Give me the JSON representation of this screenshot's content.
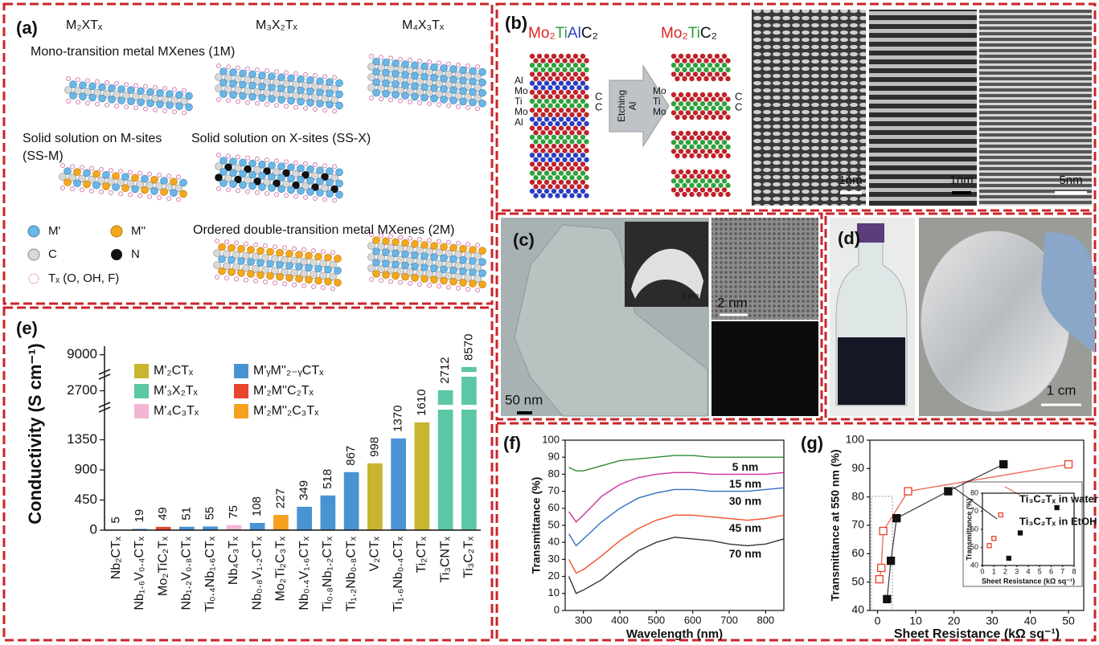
{
  "panels": {
    "a": {
      "label": "(a)",
      "headers": [
        "M₂XTₓ",
        "M₃X₂Tₓ",
        "M₄X₃Tₓ"
      ],
      "mono": "Mono-transition metal MXenes (1M)",
      "ssm": [
        "Solid solution on M-sites",
        "(SS-M)"
      ],
      "ssx": "Solid solution on X-sites (SS-X)",
      "ordered": "Ordered double-transition metal MXenes (2M)",
      "legend": [
        "M'",
        "M''",
        "C",
        "N",
        "Tₓ (O, OH, F)"
      ]
    },
    "b": {
      "label": "(b)",
      "parent": [
        "Mo₂",
        "Ti",
        "Al",
        "C₂"
      ],
      "product": [
        "Mo₂",
        "Ti",
        "C₂"
      ],
      "etching": [
        "Etching",
        "Al"
      ],
      "layers_left": [
        "Al",
        "Mo",
        "Ti",
        "Mo",
        "Al"
      ],
      "layers_right": [
        "Mo",
        "Ti",
        "Mo"
      ],
      "carbon": "C",
      "scales": [
        "1nm",
        "1nm",
        "5nm"
      ]
    },
    "c": {
      "label": "(c)",
      "scales": [
        "50 nm",
        "3 μm",
        "2 nm"
      ]
    },
    "d": {
      "label": "(d)",
      "scale": "1 cm"
    }
  },
  "chart_data": [
    {
      "type": "bar",
      "label": "(e)",
      "y_label": "Conductivity (S cm⁻¹)",
      "categories": [
        "Nb₂CTₓ",
        "Nb₁.₆V₀.₄CTₓ",
        "Mo₂TiC₂Tₓ",
        "Nb₁.₂V₀.₈CTₓ",
        "Ti₀.₄Nb₁.₆CTₓ",
        "Nb₄C₃Tₓ",
        "Nb₀.₈V₁.₂CTₓ",
        "Mo₂Ti₂C₃Tₓ",
        "Nb₀.₄V₁.₆CTₓ",
        "Ti₀.₈Nb₁.₂CTₓ",
        "Ti₁.₂Nb₀.₈CTₓ",
        "V₂CTₓ",
        "Ti₁.₆Nb₀.₄CTₓ",
        "Ti₂CTₓ",
        "Ti₃CNTₓ",
        "Ti₃C₂Tₓ"
      ],
      "series": [
        {
          "name": "M'₂CTₓ",
          "color": "#c9b52e",
          "values": [
            5,
            null,
            null,
            null,
            null,
            null,
            null,
            null,
            null,
            null,
            null,
            998,
            null,
            1610,
            null,
            null
          ]
        },
        {
          "name": "M'₃X₂Tₓ",
          "color": "#5cc7a6",
          "values": [
            null,
            null,
            null,
            null,
            null,
            null,
            null,
            null,
            null,
            null,
            null,
            null,
            null,
            null,
            2712,
            8570
          ]
        },
        {
          "name": "M'₄C₃Tₓ",
          "color": "#f2b6d4",
          "values": [
            null,
            null,
            null,
            null,
            null,
            75,
            null,
            null,
            null,
            null,
            null,
            null,
            null,
            null,
            null,
            null
          ]
        },
        {
          "name": "M'ᵧM''₂₋ᵧCTₓ",
          "color": "#4a93d2",
          "values": [
            null,
            19,
            null,
            51,
            55,
            null,
            108,
            null,
            349,
            518,
            867,
            null,
            1370,
            null,
            null,
            null
          ]
        },
        {
          "name": "M'₂M''C₂Tₓ",
          "color": "#e8452f",
          "values": [
            null,
            null,
            49,
            null,
            null,
            null,
            null,
            null,
            null,
            null,
            null,
            null,
            null,
            null,
            null,
            null
          ]
        },
        {
          "name": "M'₂M''₂C₃Tₓ",
          "color": "#f5a11f",
          "values": [
            null,
            null,
            null,
            null,
            null,
            null,
            null,
            227,
            null,
            null,
            null,
            null,
            null,
            null,
            null,
            null
          ]
        }
      ],
      "ylim": [
        0,
        9300
      ],
      "axis_breaks": [
        [
          1800,
          2400
        ],
        [
          3000,
          8400
        ]
      ],
      "yticks": [
        0,
        450,
        900,
        1350,
        2700,
        9000
      ]
    },
    {
      "type": "line",
      "label": "(f)",
      "x_label": "Wavelength (nm)",
      "y_label": "Transmittance (%)",
      "x": [
        260,
        280,
        300,
        350,
        400,
        450,
        500,
        550,
        600,
        650,
        700,
        750,
        800,
        850
      ],
      "xlim": [
        250,
        850
      ],
      "xticks": [
        300,
        400,
        500,
        600,
        700,
        800
      ],
      "ylim": [
        0,
        100
      ],
      "yticks": [
        0,
        10,
        20,
        30,
        40,
        50,
        60,
        70,
        80,
        90,
        100
      ],
      "series": [
        {
          "name": "5 nm",
          "color": "#2e8b2e",
          "values": [
            84,
            82,
            82,
            85,
            88,
            89,
            90,
            91,
            91,
            90,
            90,
            90,
            90,
            90
          ]
        },
        {
          "name": "15 nm",
          "color": "#d1309a",
          "values": [
            58,
            52,
            56,
            67,
            74,
            78,
            80,
            81,
            81,
            80,
            80,
            80,
            80,
            81
          ]
        },
        {
          "name": "30 nm",
          "color": "#2f6fc4",
          "values": [
            45,
            38,
            42,
            52,
            60,
            66,
            69,
            71,
            71,
            70,
            70,
            70,
            71,
            72
          ]
        },
        {
          "name": "45 nm",
          "color": "#f2502a",
          "values": [
            30,
            22,
            24,
            32,
            41,
            48,
            53,
            56,
            56,
            55,
            54,
            53,
            54,
            56
          ]
        },
        {
          "name": "70 nm",
          "color": "#333333",
          "values": [
            20,
            10,
            12,
            18,
            27,
            35,
            40,
            43,
            42,
            41,
            39,
            38,
            39,
            42
          ]
        }
      ]
    },
    {
      "type": "scatter",
      "label": "(g)",
      "x_label": "Sheet Resistance (kΩ sq⁻¹)",
      "y_label": "Transmittance at 550 nm (%)",
      "xlim": [
        -2,
        54
      ],
      "xticks": [
        0,
        10,
        20,
        30,
        40,
        50
      ],
      "ylim": [
        40,
        100
      ],
      "yticks": [
        40,
        50,
        60,
        70,
        80,
        90,
        100
      ],
      "lines": true,
      "series": [
        {
          "name": "Ti₃C₂Tₓ in water",
          "color": "#e8402a",
          "filled": false,
          "x": [
            0.5,
            1,
            1.5,
            8,
            50
          ],
          "y": [
            51,
            55,
            68,
            82,
            91.5
          ]
        },
        {
          "name": "Ti₃C₂Tₓ in EtOH",
          "color": "#111111",
          "filled": true,
          "x": [
            2.5,
            3.5,
            5,
            18.5,
            33
          ],
          "y": [
            44,
            57.5,
            72.5,
            82,
            91.5
          ]
        }
      ]
    },
    {
      "type": "scatter",
      "x_label": "Sheet Resistance (kΩ sq⁻¹)",
      "y_label": "Transmittance (%)",
      "xlim": [
        0,
        8
      ],
      "xticks": [
        0,
        1,
        2,
        3,
        4,
        5,
        6,
        7,
        8
      ],
      "ylim": [
        40,
        80
      ],
      "yticks": [
        40,
        50,
        60,
        70,
        80
      ],
      "lines": false,
      "series": [
        {
          "color": "#e8402a",
          "filled": false,
          "x": [
            0.6,
            1,
            1.6
          ],
          "y": [
            51,
            55,
            68
          ]
        },
        {
          "color": "#111111",
          "filled": true,
          "x": [
            2.3,
            3.3,
            6.5
          ],
          "y": [
            44,
            58,
            72
          ]
        }
      ]
    }
  ]
}
